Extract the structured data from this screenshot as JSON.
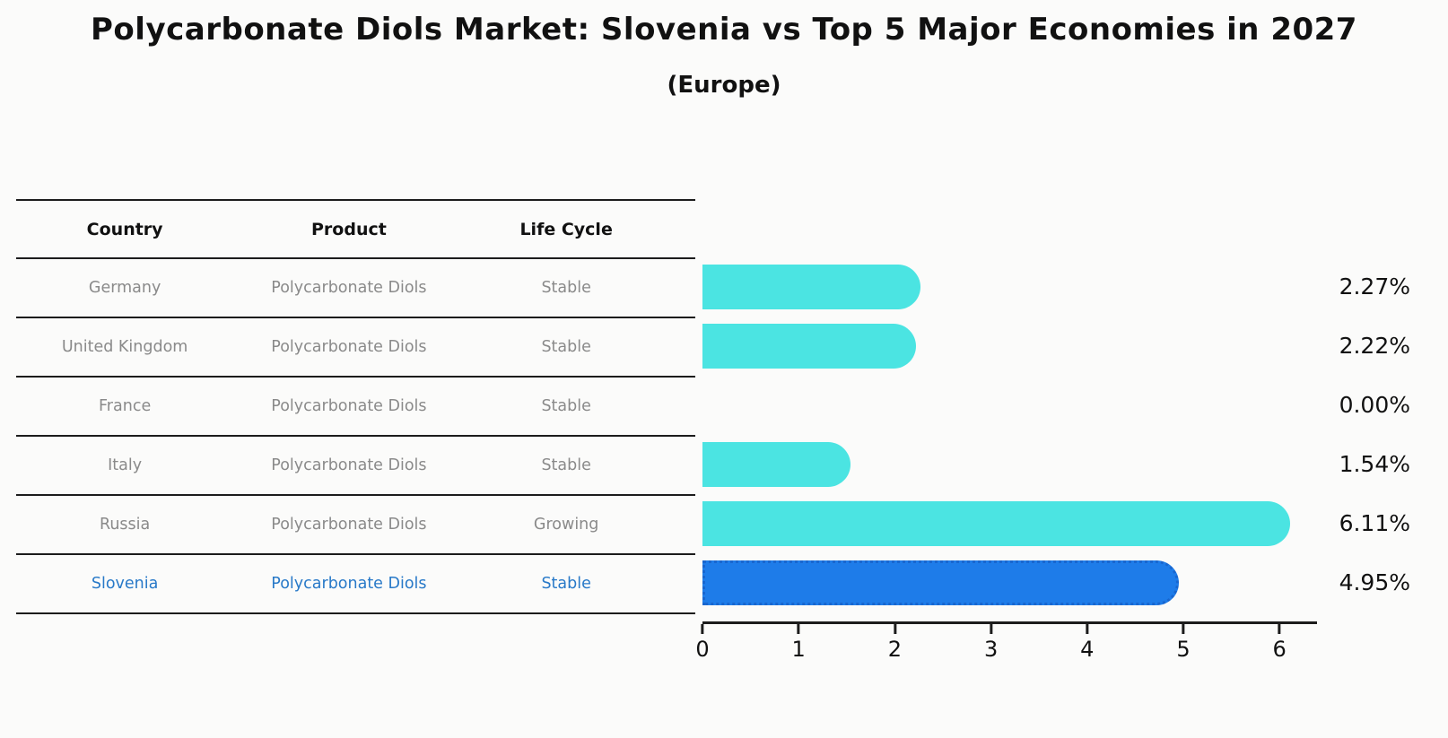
{
  "title": "Polycarbonate Diols Market: Slovenia vs Top 5 Major Economies in 2027",
  "subtitle": "(Europe)",
  "table": {
    "headers": [
      "Country",
      "Product",
      "Life Cycle"
    ]
  },
  "rows": [
    {
      "country": "Germany",
      "product": "Polycarbonate Diols",
      "life_cycle": "Stable"
    },
    {
      "country": "United Kingdom",
      "product": "Polycarbonate Diols",
      "life_cycle": "Stable"
    },
    {
      "country": "France",
      "product": "Polycarbonate Diols",
      "life_cycle": "Stable"
    },
    {
      "country": "Italy",
      "product": "Polycarbonate Diols",
      "life_cycle": "Stable"
    },
    {
      "country": "Russia",
      "product": "Polycarbonate Diols",
      "life_cycle": "Growing"
    },
    {
      "country": "Slovenia",
      "product": "Polycarbonate Diols",
      "life_cycle": "Stable"
    }
  ],
  "chart_data": {
    "type": "bar",
    "orientation": "horizontal",
    "title": "Polycarbonate Diols Market: Slovenia vs Top 5 Major Economies in 2027 (Europe)",
    "categories": [
      "Germany",
      "United Kingdom",
      "France",
      "Italy",
      "Russia",
      "Slovenia"
    ],
    "values": [
      2.27,
      2.22,
      0.0,
      1.54,
      6.11,
      4.95
    ],
    "value_labels": [
      "2.27%",
      "2.22%",
      "0.00%",
      "1.54%",
      "6.11%",
      "4.95%"
    ],
    "highlight_category": "Slovenia",
    "xlabel": "",
    "ylabel": "",
    "xlim": [
      0,
      6.39
    ],
    "xticks": [
      0,
      1,
      2,
      3,
      4,
      5,
      6
    ],
    "grid": false,
    "legend": false
  },
  "colors": {
    "background": "#fbfbfa",
    "bar_cyan": "#4be4e2",
    "bar_blue": "#1e7ce9",
    "bar_blue_border": "#1866cf",
    "text_dark": "#111111",
    "text_gray": "#8a8a8a",
    "highlight_text": "#2879c8",
    "line": "#1c1c1c"
  }
}
